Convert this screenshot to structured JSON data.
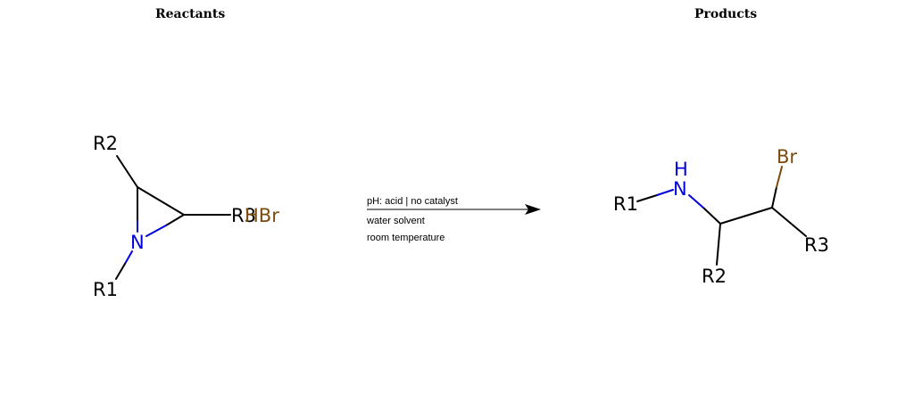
{
  "headers": {
    "reactants": "Reactants",
    "products": "Products"
  },
  "reactants": {
    "atoms": {
      "r2": "R2",
      "n": "N",
      "r1": "R1",
      "r3": "R3",
      "hbr": "HBr"
    }
  },
  "conditions": {
    "line1": "pH: acid | no catalyst",
    "line2": "water solvent",
    "line3": "room temperature"
  },
  "products": {
    "atoms": {
      "h": "H",
      "n": "N",
      "r1": "R1",
      "br": "Br",
      "r2": "R2",
      "r3": "R3"
    }
  },
  "colors": {
    "nitrogen": "#0000dd",
    "bromine": "#7a4a0e",
    "carbon": "#000000"
  }
}
